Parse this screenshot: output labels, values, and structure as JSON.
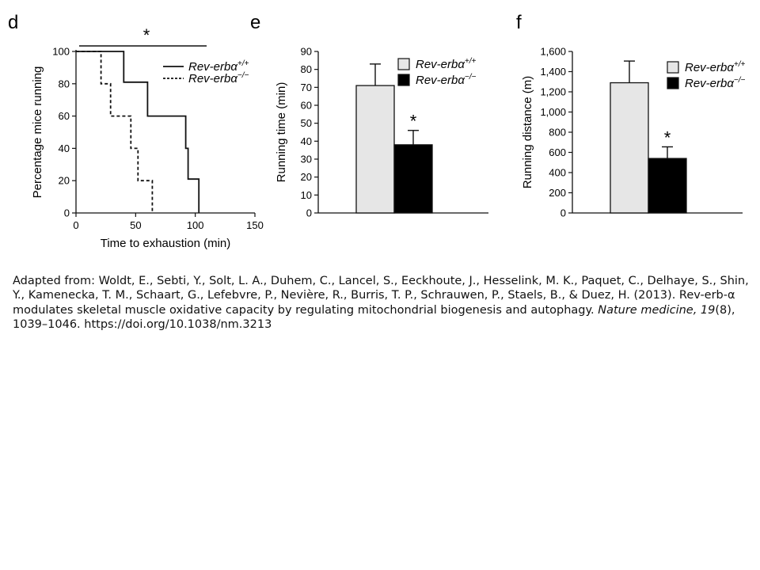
{
  "chart_data": [
    {
      "panel": "d",
      "type": "line",
      "xlabel": "Time to exhaustion (min)",
      "ylabel": "Percentage mice running",
      "xlim": [
        0,
        150
      ],
      "ylim": [
        0,
        100
      ],
      "xticks": [
        "0",
        "50",
        "100",
        "150"
      ],
      "yticks": [
        "0",
        "20",
        "40",
        "60",
        "80",
        "100"
      ],
      "significance": "*",
      "series": [
        {
          "name": "Rev-erbα+/+",
          "name_base": "Rev-erbα",
          "name_sup": "+/+",
          "style": "solid",
          "points": [
            [
              0,
              100
            ],
            [
              40,
              100
            ],
            [
              40,
              81
            ],
            [
              60,
              81
            ],
            [
              60,
              60
            ],
            [
              92,
              60
            ],
            [
              92,
              40
            ],
            [
              94,
              40
            ],
            [
              94,
              21
            ],
            [
              103,
              21
            ],
            [
              103,
              0
            ]
          ]
        },
        {
          "name": "Rev-erbα−/−",
          "name_base": "Rev-erbα",
          "name_sup": "−/−",
          "style": "dashed",
          "points": [
            [
              0,
              100
            ],
            [
              21,
              100
            ],
            [
              21,
              80
            ],
            [
              29,
              80
            ],
            [
              29,
              60
            ],
            [
              46,
              60
            ],
            [
              46,
              40
            ],
            [
              52,
              40
            ],
            [
              52,
              20
            ],
            [
              64,
              20
            ],
            [
              64,
              0
            ]
          ]
        }
      ]
    },
    {
      "panel": "e",
      "type": "bar",
      "ylabel": "Running time (min)",
      "ylim": [
        0,
        90
      ],
      "yticks": [
        "0",
        "10",
        "20",
        "30",
        "40",
        "50",
        "60",
        "70",
        "80",
        "90"
      ],
      "categories": [
        "Rev-erbα+/+",
        "Rev-erbα−/−"
      ],
      "values": [
        71,
        38
      ],
      "errors": [
        12,
        8
      ],
      "significance": [
        "",
        "*"
      ],
      "colors": [
        "#e6e6e6",
        "#000000"
      ],
      "legend": [
        {
          "base": "Rev-erbα",
          "sup": "+/+"
        },
        {
          "base": "Rev-erbα",
          "sup": "−/−"
        }
      ]
    },
    {
      "panel": "f",
      "type": "bar",
      "ylabel": "Running distance (m)",
      "ylim": [
        0,
        1600
      ],
      "yticks": [
        "0",
        "200",
        "400",
        "600",
        "800",
        "1,000",
        "1,200",
        "1,400",
        "1,600"
      ],
      "categories": [
        "Rev-erbα+/+",
        "Rev-erbα−/−"
      ],
      "values": [
        1290,
        540
      ],
      "errors": [
        215,
        115
      ],
      "significance": [
        "",
        "*"
      ],
      "colors": [
        "#e6e6e6",
        "#000000"
      ],
      "legend": [
        {
          "base": "Rev-erbα",
          "sup": "+/+"
        },
        {
          "base": "Rev-erbα",
          "sup": "−/−"
        }
      ]
    }
  ],
  "caption": {
    "text_main": "Adapted from: Woldt, E., Sebti, Y., Solt, L. A., Duhem, C., Lancel, S., Eeckhoute, J., Hesselink, M. K., Paquet, C., Delhaye, S., Shin, Y., Kamenecka, T. M., Schaart, G., Lefebvre, P., Nevière, R., Burris, T. P., Schrauwen, P., Staels, B., & Duez, H. (2013). Rev-erb-α modulates skeletal muscle oxidative capacity by regulating mitochondrial biogenesis and autophagy. ",
    "journal": "Nature medicine, 19",
    "text_tail": "(8), 1039–1046. https://doi.org/10.1038/nm.3213"
  }
}
